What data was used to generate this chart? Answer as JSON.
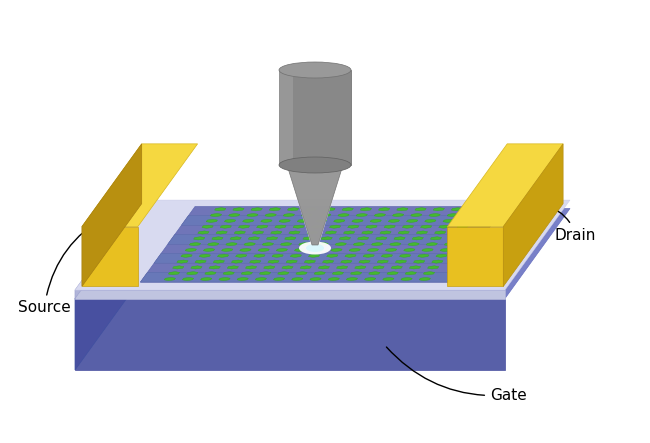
{
  "bg_color": "#ffffff",
  "labels": {
    "source": "Source",
    "drain": "Drain",
    "gate": "Gate"
  },
  "colors": {
    "sub_front": "#5860a8",
    "sub_left": "#4850a0",
    "sub_top": "#7880c8",
    "diel_front": "#c0c4e0",
    "diel_left": "#b0b4d8",
    "diel_top": "#d8daf0",
    "gnr_bg": "#7075b8",
    "gnr_ribbon": "#6878b8",
    "gnr_green": "#45b830",
    "gnr_green_edge": "#35a820",
    "elec_front": "#e8c020",
    "elec_top": "#f5d840",
    "elec_left": "#b89010",
    "elec_right": "#c8a010",
    "tip_body": "#888888",
    "tip_top": "#999999",
    "tip_bot": "#808080",
    "tip_shade": "#aaaaaa",
    "cone_body": "#909090",
    "wire": "#222222"
  },
  "figsize": [
    6.5,
    4.43
  ],
  "dpi": 100
}
